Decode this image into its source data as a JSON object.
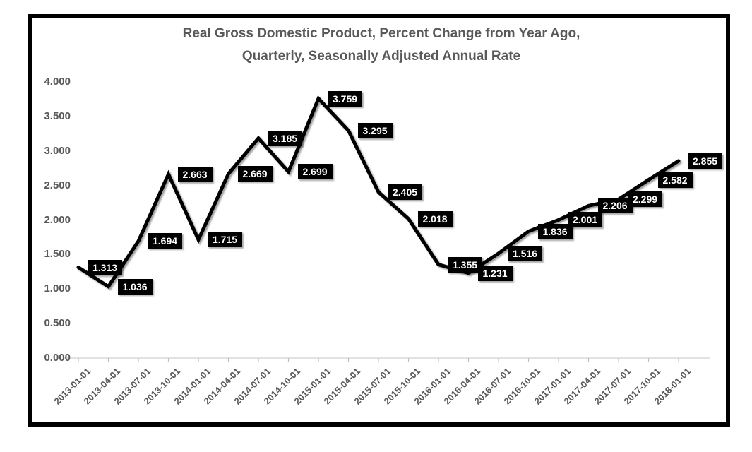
{
  "chart_data": {
    "type": "line",
    "title": "Real Gross Domestic Product, Percent Change from Year Ago,\nQuarterly, Seasonally Adjusted Annual Rate",
    "categories": [
      "2013-01-01",
      "2013-04-01",
      "2013-07-01",
      "2013-10-01",
      "2014-01-01",
      "2014-04-01",
      "2014-07-01",
      "2014-10-01",
      "2015-01-01",
      "2015-04-01",
      "2015-07-01",
      "2015-10-01",
      "2016-01-01",
      "2016-04-01",
      "2016-07-01",
      "2016-10-01",
      "2017-01-01",
      "2017-04-01",
      "2017-07-01",
      "2017-10-01",
      "2018-01-01"
    ],
    "values": [
      1.313,
      1.036,
      1.694,
      2.663,
      1.715,
      2.669,
      3.185,
      2.699,
      3.759,
      3.295,
      2.405,
      2.018,
      1.355,
      1.231,
      1.516,
      1.836,
      2.001,
      2.206,
      2.299,
      2.582,
      2.855
    ],
    "data_label_format": "3-decimals",
    "xlabel": "",
    "ylabel": "",
    "ylim": [
      0,
      4
    ],
    "yticks": [
      {
        "value": 0.0,
        "label": "0.000"
      },
      {
        "value": 0.5,
        "label": "0.500"
      },
      {
        "value": 1.0,
        "label": "1.000"
      },
      {
        "value": 1.5,
        "label": "1.500"
      },
      {
        "value": 2.0,
        "label": "2.000"
      },
      {
        "value": 2.5,
        "label": "2.500"
      },
      {
        "value": 3.0,
        "label": "3.000"
      },
      {
        "value": 3.5,
        "label": "3.500"
      },
      {
        "value": 4.0,
        "label": "4.000"
      }
    ],
    "grid": false,
    "legend": "none",
    "colors": {
      "line": "#000000",
      "data_label_bg": "#000000",
      "data_label_text": "#ffffff",
      "axis_line": "#d9d9d9",
      "tick_mark": "#bfbfbf",
      "axis_text": "#595959",
      "title_text": "#595959",
      "frame_border": "#000000",
      "background": "#ffffff"
    }
  }
}
